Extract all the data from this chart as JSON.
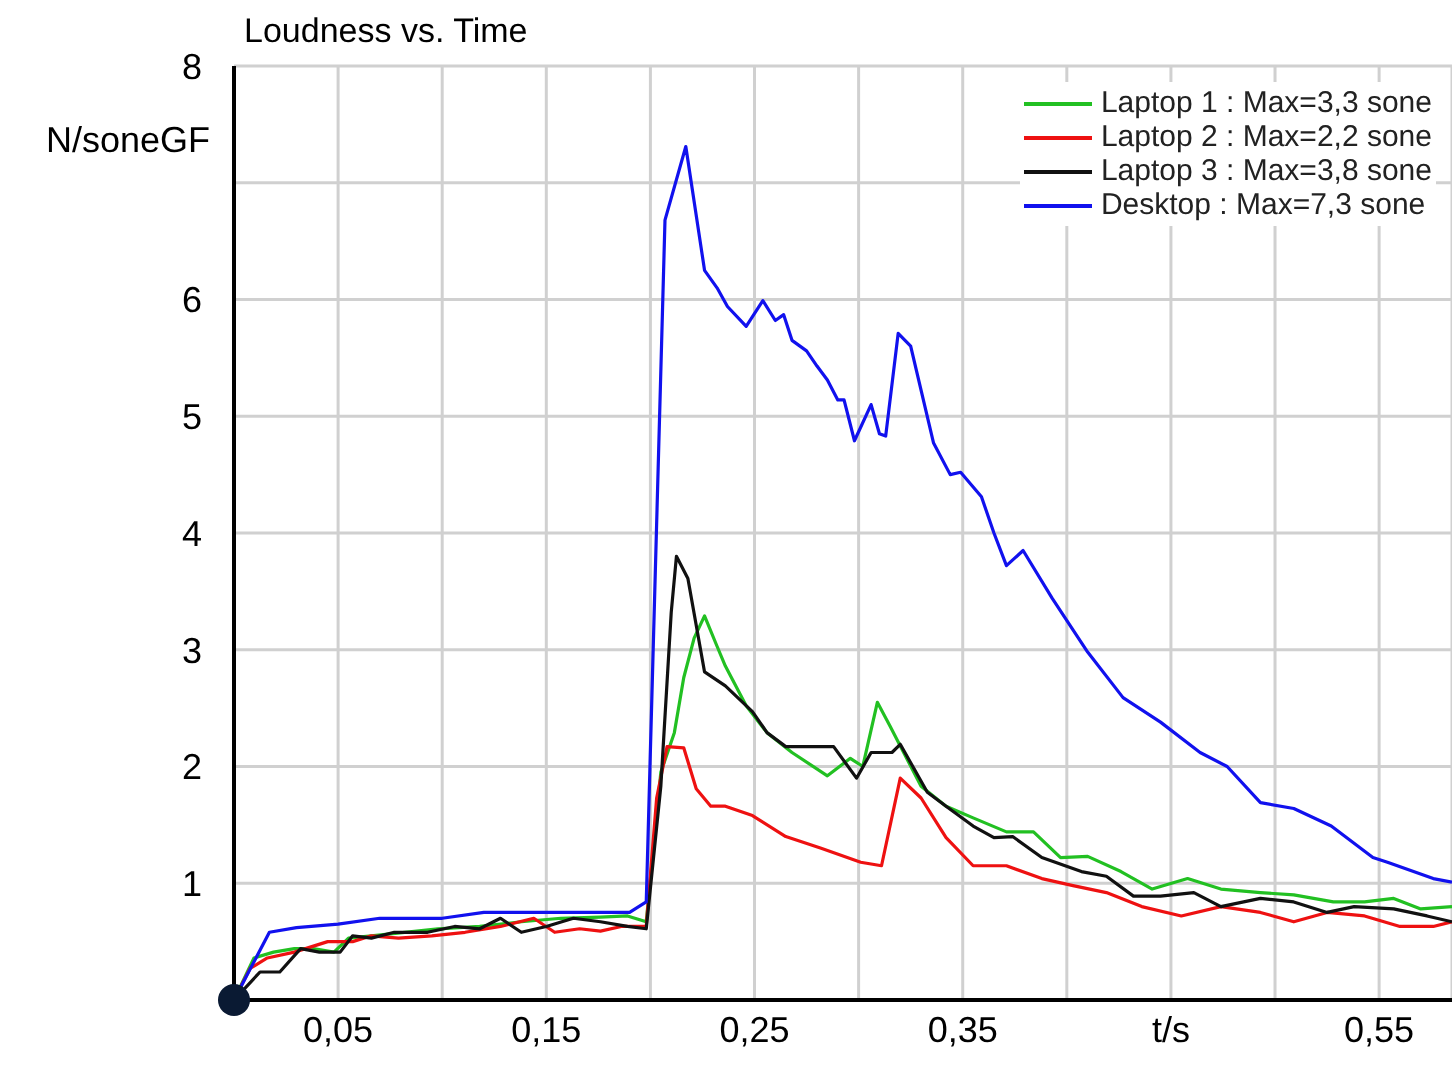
{
  "chart_data": {
    "type": "line",
    "title": "Loudness vs. Time",
    "ylabel": "N/soneGF",
    "xlim": [
      0,
      0.585
    ],
    "ylim": [
      0,
      8
    ],
    "xticks": [
      {
        "value": 0.05,
        "label": "0,05"
      },
      {
        "value": 0.1,
        "label": null
      },
      {
        "value": 0.15,
        "label": "0,15"
      },
      {
        "value": 0.2,
        "label": null
      },
      {
        "value": 0.25,
        "label": "0,25"
      },
      {
        "value": 0.3,
        "label": null
      },
      {
        "value": 0.35,
        "label": "0,35"
      },
      {
        "value": 0.4,
        "label": null
      },
      {
        "value": 0.45,
        "label": "t/s"
      },
      {
        "value": 0.5,
        "label": null
      },
      {
        "value": 0.55,
        "label": "0,55"
      }
    ],
    "yticks": [
      1,
      2,
      3,
      4,
      5,
      6,
      {
        "value": 7,
        "label": null
      },
      8
    ],
    "grid": true,
    "legend": "top right",
    "marker": "none",
    "line_style": "solid",
    "series": [
      {
        "name": "Laptop 1 : Max=3,3 sone",
        "color": "#22c022",
        "x": [
          0,
          0.0096,
          0.019,
          0.029,
          0.038,
          0.048,
          0.055,
          0.066,
          0.082,
          0.098,
          0.118,
          0.138,
          0.157,
          0.176,
          0.189,
          0.198,
          0.205,
          0.2115,
          0.216,
          0.221,
          0.226,
          0.232,
          0.236,
          0.246,
          0.256,
          0.268,
          0.285,
          0.296,
          0.302,
          0.309,
          0.315,
          0.33,
          0.342,
          0.355,
          0.371,
          0.384,
          0.397,
          0.41,
          0.426,
          0.441,
          0.458,
          0.474,
          0.493,
          0.509,
          0.528,
          0.543,
          0.557,
          0.57,
          0.585
        ],
        "values": [
          0,
          0.36,
          0.41,
          0.44,
          0.44,
          0.41,
          0.53,
          0.55,
          0.58,
          0.61,
          0.63,
          0.67,
          0.7,
          0.71,
          0.72,
          0.67,
          1.95,
          2.29,
          2.76,
          3.1,
          3.29,
          3.03,
          2.86,
          2.52,
          2.29,
          2.12,
          1.92,
          2.07,
          2.0,
          2.55,
          2.35,
          1.83,
          1.66,
          1.56,
          1.44,
          1.44,
          1.22,
          1.23,
          1.1,
          0.95,
          1.04,
          0.95,
          0.92,
          0.9,
          0.84,
          0.84,
          0.87,
          0.78,
          0.8
        ]
      },
      {
        "name": "Laptop 2 : Max=2,2 sone",
        "color": "#ee1111",
        "x": [
          0,
          0.0077,
          0.016,
          0.029,
          0.045,
          0.057,
          0.066,
          0.079,
          0.095,
          0.111,
          0.128,
          0.144,
          0.154,
          0.166,
          0.176,
          0.186,
          0.198,
          0.203,
          0.208,
          0.216,
          0.222,
          0.229,
          0.236,
          0.249,
          0.265,
          0.282,
          0.301,
          0.311,
          0.32,
          0.33,
          0.342,
          0.355,
          0.371,
          0.388,
          0.403,
          0.419,
          0.436,
          0.455,
          0.474,
          0.493,
          0.509,
          0.525,
          0.543,
          0.56,
          0.576,
          0.585
        ],
        "values": [
          0,
          0.27,
          0.36,
          0.41,
          0.5,
          0.5,
          0.55,
          0.53,
          0.55,
          0.58,
          0.63,
          0.7,
          0.58,
          0.61,
          0.59,
          0.63,
          0.63,
          1.73,
          2.17,
          2.16,
          1.81,
          1.66,
          1.66,
          1.58,
          1.4,
          1.3,
          1.18,
          1.15,
          1.9,
          1.73,
          1.39,
          1.15,
          1.15,
          1.04,
          0.98,
          0.92,
          0.8,
          0.72,
          0.8,
          0.75,
          0.67,
          0.75,
          0.72,
          0.63,
          0.63,
          0.67
        ]
      },
      {
        "name": "Laptop 3 : Max=3,8 sone",
        "color": "#111111",
        "x": [
          0,
          0.0125,
          0.022,
          0.032,
          0.041,
          0.051,
          0.057,
          0.066,
          0.077,
          0.093,
          0.106,
          0.118,
          0.128,
          0.138,
          0.15,
          0.163,
          0.176,
          0.189,
          0.198,
          0.205,
          0.21,
          0.2125,
          0.218,
          0.226,
          0.236,
          0.249,
          0.256,
          0.265,
          0.278,
          0.288,
          0.299,
          0.306,
          0.316,
          0.32,
          0.333,
          0.342,
          0.355,
          0.365,
          0.374,
          0.388,
          0.407,
          0.419,
          0.432,
          0.445,
          0.461,
          0.474,
          0.493,
          0.509,
          0.525,
          0.538,
          0.557,
          0.573,
          0.585
        ],
        "values": [
          0,
          0.24,
          0.24,
          0.44,
          0.41,
          0.41,
          0.55,
          0.53,
          0.58,
          0.58,
          0.63,
          0.61,
          0.7,
          0.58,
          0.63,
          0.7,
          0.67,
          0.63,
          0.61,
          1.83,
          3.32,
          3.8,
          3.61,
          2.81,
          2.69,
          2.47,
          2.29,
          2.17,
          2.17,
          2.17,
          1.9,
          2.12,
          2.12,
          2.19,
          1.78,
          1.66,
          1.49,
          1.39,
          1.4,
          1.22,
          1.1,
          1.06,
          0.89,
          0.89,
          0.92,
          0.8,
          0.87,
          0.84,
          0.75,
          0.8,
          0.78,
          0.72,
          0.67
        ]
      },
      {
        "name": "Desktop : Max=7,3 sone",
        "color": "#1111ee",
        "x": [
          0,
          0.017,
          0.03,
          0.05,
          0.07,
          0.1,
          0.12,
          0.15,
          0.19,
          0.198,
          0.207,
          0.217,
          0.226,
          0.232,
          0.237,
          0.246,
          0.254,
          0.26,
          0.264,
          0.268,
          0.275,
          0.28,
          0.285,
          0.29,
          0.293,
          0.298,
          0.306,
          0.31,
          0.313,
          0.319,
          0.325,
          0.336,
          0.344,
          0.349,
          0.359,
          0.365,
          0.371,
          0.379,
          0.393,
          0.41,
          0.427,
          0.445,
          0.464,
          0.477,
          0.493,
          0.509,
          0.527,
          0.547,
          0.554,
          0.576,
          0.585
        ],
        "values": [
          0,
          0.58,
          0.62,
          0.65,
          0.7,
          0.7,
          0.75,
          0.75,
          0.75,
          0.84,
          6.68,
          7.31,
          6.25,
          6.1,
          5.94,
          5.77,
          5.99,
          5.82,
          5.87,
          5.65,
          5.56,
          5.43,
          5.31,
          5.14,
          5.14,
          4.79,
          5.1,
          4.85,
          4.83,
          5.71,
          5.6,
          4.77,
          4.5,
          4.52,
          4.31,
          4.0,
          3.72,
          3.85,
          3.44,
          2.98,
          2.59,
          2.38,
          2.12,
          2.0,
          1.69,
          1.64,
          1.49,
          1.22,
          1.18,
          1.04,
          1.01
        ]
      }
    ]
  }
}
